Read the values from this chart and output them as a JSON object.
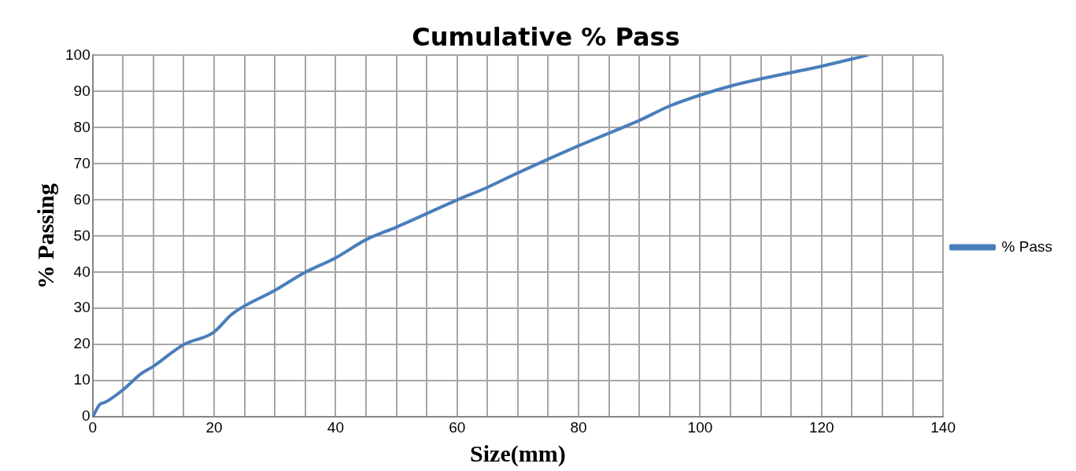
{
  "chart_data": {
    "type": "line",
    "title": "Cumulative % Pass",
    "xlabel": "Size(mm)",
    "ylabel": "% Passing",
    "xlim": [
      0,
      140
    ],
    "xticks": [
      0,
      {
        "value": 5,
        "label": null
      },
      {
        "value": 10,
        "label": null
      },
      {
        "value": 15,
        "label": null
      },
      20,
      {
        "value": 25,
        "label": null
      },
      {
        "value": 30,
        "label": null
      },
      {
        "value": 35,
        "label": null
      },
      40,
      {
        "value": 45,
        "label": null
      },
      {
        "value": 50,
        "label": null
      },
      {
        "value": 55,
        "label": null
      },
      60,
      {
        "value": 65,
        "label": null
      },
      {
        "value": 70,
        "label": null
      },
      {
        "value": 75,
        "label": null
      },
      80,
      {
        "value": 85,
        "label": null
      },
      {
        "value": 90,
        "label": null
      },
      {
        "value": 95,
        "label": null
      },
      100,
      {
        "value": 105,
        "label": null
      },
      {
        "value": 110,
        "label": null
      },
      {
        "value": 115,
        "label": null
      },
      120,
      {
        "value": 125,
        "label": null
      },
      {
        "value": 130,
        "label": null
      },
      {
        "value": 135,
        "label": null
      },
      140
    ],
    "ylim": [
      0,
      100
    ],
    "yticks": [
      0,
      10,
      20,
      30,
      40,
      50,
      60,
      70,
      80,
      90,
      100
    ],
    "grid": true,
    "legend": "right",
    "marker": "none",
    "line_style": "solid",
    "series": [
      {
        "name": "% Pass",
        "color": "#4a7ebb",
        "x": [
          0,
          1.2,
          2,
          5,
          8,
          10,
          15,
          19,
          20,
          23,
          30,
          35,
          40,
          45,
          50,
          60,
          65,
          70,
          80,
          90,
          95,
          100,
          105,
          110,
          120,
          127.5
        ],
        "values": [
          0,
          3.5,
          4,
          7.5,
          12,
          14,
          20,
          22.5,
          23.5,
          28.5,
          35,
          40,
          44,
          49,
          52.5,
          60,
          63.5,
          67.5,
          75,
          82,
          86,
          89,
          91.5,
          93.5,
          97,
          100
        ]
      }
    ]
  }
}
